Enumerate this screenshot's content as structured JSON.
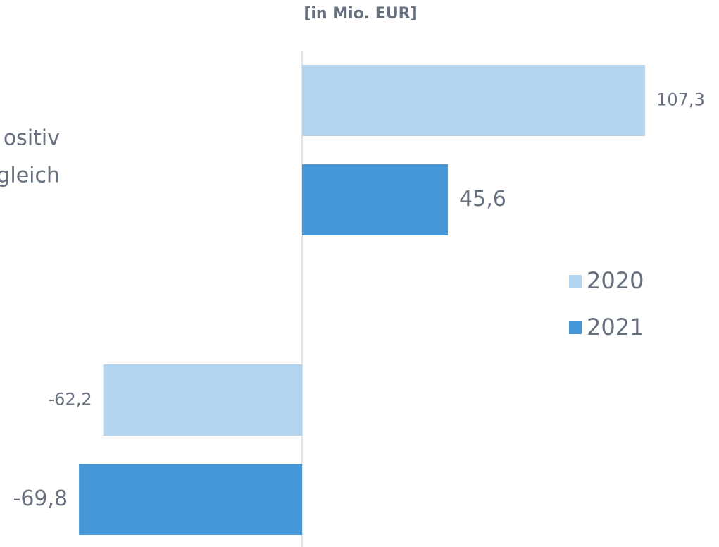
{
  "chart_data": {
    "type": "hbar",
    "subtitle": "[in Mio. EUR]",
    "categories": [
      [
        "ositiv",
        "gleich"
      ],
      null
    ],
    "series": [
      {
        "name": "2020",
        "color": "#b3d5f0",
        "values": [
          107.3,
          -62.2
        ],
        "value_labels": [
          "107,3",
          "-62,2"
        ]
      },
      {
        "name": "2021",
        "color": "#4597d8",
        "values": [
          45.6,
          -69.8
        ],
        "value_labels": [
          "45,6",
          "-69,8"
        ]
      }
    ],
    "xlim": [
      -94.5,
      130.4
    ],
    "legend": "right"
  }
}
